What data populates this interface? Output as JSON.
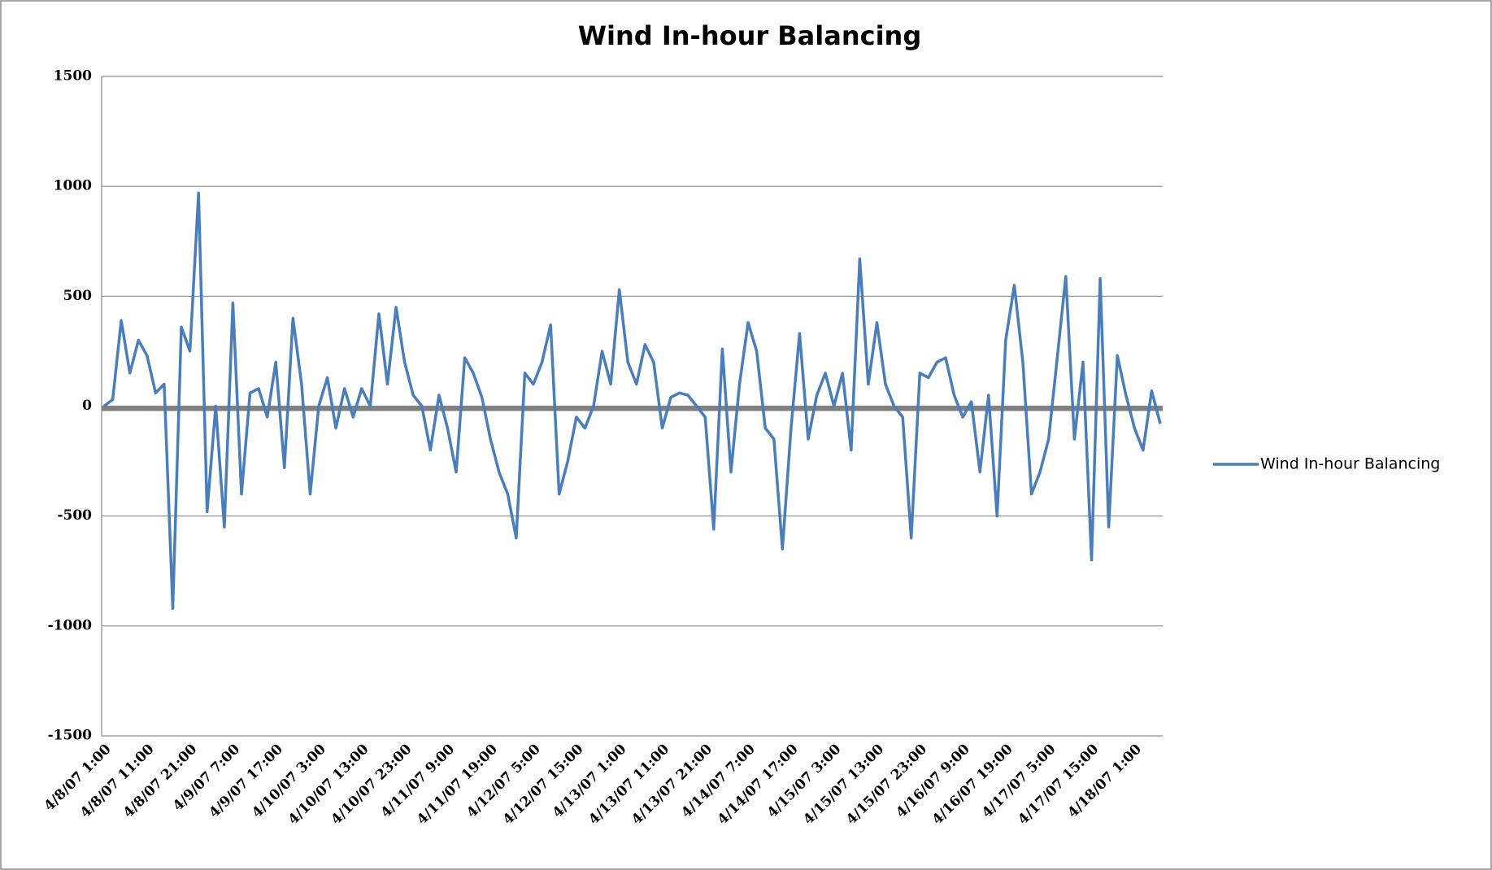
{
  "chart_data": {
    "type": "line",
    "title": "Wind In-hour Balancing",
    "categories": [
      "4/8/07 1:00",
      null,
      null,
      null,
      null,
      "4/8/07 11:00",
      null,
      null,
      null,
      null,
      "4/8/07 21:00",
      null,
      null,
      null,
      null,
      "4/9/07 7:00",
      null,
      null,
      null,
      null,
      "4/9/07 17:00",
      null,
      null,
      null,
      null,
      "4/10/07 3:00",
      null,
      null,
      null,
      null,
      "4/10/07 13:00",
      null,
      null,
      null,
      null,
      "4/10/07 23:00",
      null,
      null,
      null,
      null,
      "4/11/07 9:00",
      null,
      null,
      null,
      null,
      "4/11/07 19:00",
      null,
      null,
      null,
      null,
      "4/12/07 5:00",
      null,
      null,
      null,
      null,
      "4/12/07 15:00",
      null,
      null,
      null,
      null,
      "4/13/07 1:00",
      null,
      null,
      null,
      null,
      "4/13/07 11:00",
      null,
      null,
      null,
      null,
      "4/13/07 21:00",
      null,
      null,
      null,
      null,
      "4/14/07 7:00",
      null,
      null,
      null,
      null,
      "4/14/07 17:00",
      null,
      null,
      null,
      null,
      "4/15/07 3:00",
      null,
      null,
      null,
      null,
      "4/15/07 13:00",
      null,
      null,
      null,
      null,
      "4/15/07 23:00",
      null,
      null,
      null,
      null,
      "4/16/07 9:00",
      null,
      null,
      null,
      null,
      "4/16/07 19:00",
      null,
      null,
      null,
      null,
      "4/17/07 5:00",
      null,
      null,
      null,
      null,
      "4/17/07 15:00",
      null,
      null,
      null,
      null,
      "4/18/07 1:00",
      null,
      null,
      null
    ],
    "series": [
      {
        "name": "Wind In-hour Balancing",
        "color": "#4a7ebb",
        "values": [
          0,
          30,
          390,
          150,
          300,
          230,
          60,
          100,
          -920,
          360,
          250,
          970,
          -480,
          0,
          -550,
          470,
          -400,
          60,
          80,
          -50,
          200,
          -280,
          400,
          100,
          -400,
          0,
          130,
          -100,
          80,
          -50,
          80,
          0,
          420,
          100,
          450,
          200,
          50,
          0,
          -200,
          50,
          -100,
          -300,
          220,
          150,
          40,
          -150,
          -300,
          -400,
          -600,
          150,
          100,
          200,
          370,
          -400,
          -250,
          -50,
          -100,
          0,
          250,
          100,
          530,
          200,
          100,
          280,
          200,
          -100,
          40,
          60,
          50,
          0,
          -50,
          -560,
          260,
          -300,
          100,
          380,
          250,
          -100,
          -150,
          -650,
          -100,
          330,
          -150,
          50,
          150,
          0,
          150,
          -200,
          670,
          100,
          380,
          100,
          0,
          -50,
          -600,
          150,
          130,
          200,
          220,
          50,
          -50,
          20,
          -300,
          50,
          -500,
          300,
          550,
          200,
          -400,
          -300,
          -150,
          220,
          590,
          -150,
          200,
          -700,
          580,
          -550,
          230,
          50,
          -100,
          -200,
          70,
          -80
        ]
      }
    ],
    "ylim": [
      -1500,
      1500
    ],
    "yticks": [
      -1500,
      -1000,
      -500,
      0,
      500,
      1000,
      1500
    ],
    "grid": true,
    "legend": "right"
  }
}
